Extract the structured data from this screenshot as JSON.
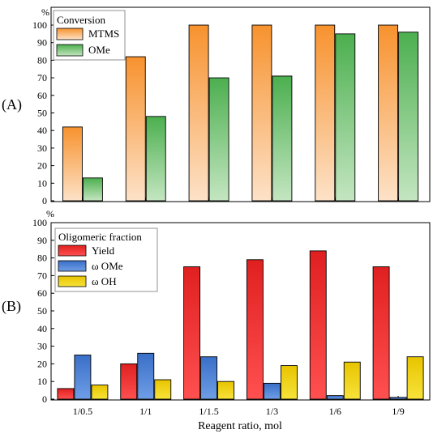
{
  "figure": {
    "xlabel": "Reagent ratio, mol",
    "categories": [
      "1/0.5",
      "1/1",
      "1/1.5",
      "1/3",
      "1/6",
      "1/9"
    ]
  },
  "chart_data": [
    {
      "type": "bar",
      "panel_label": "(A)",
      "unit_label": "%",
      "legend_title": "Conversion",
      "legend_position": "top-left",
      "categories": [
        "1/0.5",
        "1/1",
        "1/1.5",
        "1/3",
        "1/6",
        "1/9"
      ],
      "ylim": [
        0,
        100
      ],
      "yticks": [
        0,
        10,
        20,
        30,
        40,
        50,
        60,
        70,
        80,
        90,
        100
      ],
      "grid": false,
      "series": [
        {
          "name": "MTMS",
          "values": [
            42,
            82,
            100,
            100,
            100,
            100
          ],
          "color_top": "#f7922e",
          "color_bottom": "#fde2c8"
        },
        {
          "name": "OMe",
          "values": [
            13,
            48,
            70,
            71,
            95,
            96
          ],
          "color_top": "#4caf4f",
          "color_bottom": "#c4e6c1"
        }
      ]
    },
    {
      "type": "bar",
      "panel_label": "(B)",
      "unit_label": "%",
      "legend_title": "Oligomeric fraction",
      "legend_position": "top-left",
      "categories": [
        "1/0.5",
        "1/1",
        "1/1.5",
        "1/3",
        "1/6",
        "1/9"
      ],
      "xlabel": "Reagent ratio, mol",
      "ylim": [
        0,
        100
      ],
      "yticks": [
        0,
        10,
        20,
        30,
        40,
        50,
        60,
        70,
        80,
        90,
        100
      ],
      "grid": false,
      "series": [
        {
          "name": "Yield",
          "values": [
            6,
            20,
            75,
            79,
            84,
            75
          ],
          "color_top": "#e02020",
          "color_bottom": "#ff5050"
        },
        {
          "name": "ω OMe",
          "values": [
            25,
            26,
            24,
            9,
            2,
            1
          ],
          "color_top": "#3a6fc8",
          "color_bottom": "#6f9ee6"
        },
        {
          "name": "ω OH",
          "values": [
            8,
            11,
            10,
            19,
            21,
            24
          ],
          "color_top": "#e8c400",
          "color_bottom": "#f7e33a"
        }
      ]
    }
  ]
}
